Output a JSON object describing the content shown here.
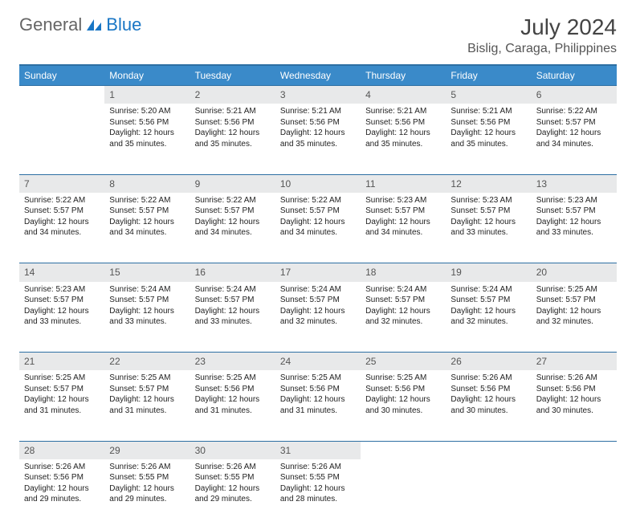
{
  "brand": {
    "part1": "General",
    "part2": "Blue"
  },
  "title": "July 2024",
  "location": "Bislig, Caraga, Philippines",
  "colors": {
    "header_bg": "#3a8ac9",
    "header_border": "#2d6fa3",
    "daynum_bg": "#e8e9ea",
    "brand_blue": "#1976c5",
    "text": "#333333"
  },
  "weekdays": [
    "Sunday",
    "Monday",
    "Tuesday",
    "Wednesday",
    "Thursday",
    "Friday",
    "Saturday"
  ],
  "weeks": [
    {
      "nums": [
        "",
        "1",
        "2",
        "3",
        "4",
        "5",
        "6"
      ],
      "cells": [
        null,
        {
          "sunrise": "Sunrise: 5:20 AM",
          "sunset": "Sunset: 5:56 PM",
          "day1": "Daylight: 12 hours",
          "day2": "and 35 minutes."
        },
        {
          "sunrise": "Sunrise: 5:21 AM",
          "sunset": "Sunset: 5:56 PM",
          "day1": "Daylight: 12 hours",
          "day2": "and 35 minutes."
        },
        {
          "sunrise": "Sunrise: 5:21 AM",
          "sunset": "Sunset: 5:56 PM",
          "day1": "Daylight: 12 hours",
          "day2": "and 35 minutes."
        },
        {
          "sunrise": "Sunrise: 5:21 AM",
          "sunset": "Sunset: 5:56 PM",
          "day1": "Daylight: 12 hours",
          "day2": "and 35 minutes."
        },
        {
          "sunrise": "Sunrise: 5:21 AM",
          "sunset": "Sunset: 5:56 PM",
          "day1": "Daylight: 12 hours",
          "day2": "and 35 minutes."
        },
        {
          "sunrise": "Sunrise: 5:22 AM",
          "sunset": "Sunset: 5:57 PM",
          "day1": "Daylight: 12 hours",
          "day2": "and 34 minutes."
        }
      ]
    },
    {
      "nums": [
        "7",
        "8",
        "9",
        "10",
        "11",
        "12",
        "13"
      ],
      "cells": [
        {
          "sunrise": "Sunrise: 5:22 AM",
          "sunset": "Sunset: 5:57 PM",
          "day1": "Daylight: 12 hours",
          "day2": "and 34 minutes."
        },
        {
          "sunrise": "Sunrise: 5:22 AM",
          "sunset": "Sunset: 5:57 PM",
          "day1": "Daylight: 12 hours",
          "day2": "and 34 minutes."
        },
        {
          "sunrise": "Sunrise: 5:22 AM",
          "sunset": "Sunset: 5:57 PM",
          "day1": "Daylight: 12 hours",
          "day2": "and 34 minutes."
        },
        {
          "sunrise": "Sunrise: 5:22 AM",
          "sunset": "Sunset: 5:57 PM",
          "day1": "Daylight: 12 hours",
          "day2": "and 34 minutes."
        },
        {
          "sunrise": "Sunrise: 5:23 AM",
          "sunset": "Sunset: 5:57 PM",
          "day1": "Daylight: 12 hours",
          "day2": "and 34 minutes."
        },
        {
          "sunrise": "Sunrise: 5:23 AM",
          "sunset": "Sunset: 5:57 PM",
          "day1": "Daylight: 12 hours",
          "day2": "and 33 minutes."
        },
        {
          "sunrise": "Sunrise: 5:23 AM",
          "sunset": "Sunset: 5:57 PM",
          "day1": "Daylight: 12 hours",
          "day2": "and 33 minutes."
        }
      ]
    },
    {
      "nums": [
        "14",
        "15",
        "16",
        "17",
        "18",
        "19",
        "20"
      ],
      "cells": [
        {
          "sunrise": "Sunrise: 5:23 AM",
          "sunset": "Sunset: 5:57 PM",
          "day1": "Daylight: 12 hours",
          "day2": "and 33 minutes."
        },
        {
          "sunrise": "Sunrise: 5:24 AM",
          "sunset": "Sunset: 5:57 PM",
          "day1": "Daylight: 12 hours",
          "day2": "and 33 minutes."
        },
        {
          "sunrise": "Sunrise: 5:24 AM",
          "sunset": "Sunset: 5:57 PM",
          "day1": "Daylight: 12 hours",
          "day2": "and 33 minutes."
        },
        {
          "sunrise": "Sunrise: 5:24 AM",
          "sunset": "Sunset: 5:57 PM",
          "day1": "Daylight: 12 hours",
          "day2": "and 32 minutes."
        },
        {
          "sunrise": "Sunrise: 5:24 AM",
          "sunset": "Sunset: 5:57 PM",
          "day1": "Daylight: 12 hours",
          "day2": "and 32 minutes."
        },
        {
          "sunrise": "Sunrise: 5:24 AM",
          "sunset": "Sunset: 5:57 PM",
          "day1": "Daylight: 12 hours",
          "day2": "and 32 minutes."
        },
        {
          "sunrise": "Sunrise: 5:25 AM",
          "sunset": "Sunset: 5:57 PM",
          "day1": "Daylight: 12 hours",
          "day2": "and 32 minutes."
        }
      ]
    },
    {
      "nums": [
        "21",
        "22",
        "23",
        "24",
        "25",
        "26",
        "27"
      ],
      "cells": [
        {
          "sunrise": "Sunrise: 5:25 AM",
          "sunset": "Sunset: 5:57 PM",
          "day1": "Daylight: 12 hours",
          "day2": "and 31 minutes."
        },
        {
          "sunrise": "Sunrise: 5:25 AM",
          "sunset": "Sunset: 5:57 PM",
          "day1": "Daylight: 12 hours",
          "day2": "and 31 minutes."
        },
        {
          "sunrise": "Sunrise: 5:25 AM",
          "sunset": "Sunset: 5:56 PM",
          "day1": "Daylight: 12 hours",
          "day2": "and 31 minutes."
        },
        {
          "sunrise": "Sunrise: 5:25 AM",
          "sunset": "Sunset: 5:56 PM",
          "day1": "Daylight: 12 hours",
          "day2": "and 31 minutes."
        },
        {
          "sunrise": "Sunrise: 5:25 AM",
          "sunset": "Sunset: 5:56 PM",
          "day1": "Daylight: 12 hours",
          "day2": "and 30 minutes."
        },
        {
          "sunrise": "Sunrise: 5:26 AM",
          "sunset": "Sunset: 5:56 PM",
          "day1": "Daylight: 12 hours",
          "day2": "and 30 minutes."
        },
        {
          "sunrise": "Sunrise: 5:26 AM",
          "sunset": "Sunset: 5:56 PM",
          "day1": "Daylight: 12 hours",
          "day2": "and 30 minutes."
        }
      ]
    },
    {
      "nums": [
        "28",
        "29",
        "30",
        "31",
        "",
        "",
        ""
      ],
      "cells": [
        {
          "sunrise": "Sunrise: 5:26 AM",
          "sunset": "Sunset: 5:56 PM",
          "day1": "Daylight: 12 hours",
          "day2": "and 29 minutes."
        },
        {
          "sunrise": "Sunrise: 5:26 AM",
          "sunset": "Sunset: 5:55 PM",
          "day1": "Daylight: 12 hours",
          "day2": "and 29 minutes."
        },
        {
          "sunrise": "Sunrise: 5:26 AM",
          "sunset": "Sunset: 5:55 PM",
          "day1": "Daylight: 12 hours",
          "day2": "and 29 minutes."
        },
        {
          "sunrise": "Sunrise: 5:26 AM",
          "sunset": "Sunset: 5:55 PM",
          "day1": "Daylight: 12 hours",
          "day2": "and 28 minutes."
        },
        null,
        null,
        null
      ]
    }
  ]
}
